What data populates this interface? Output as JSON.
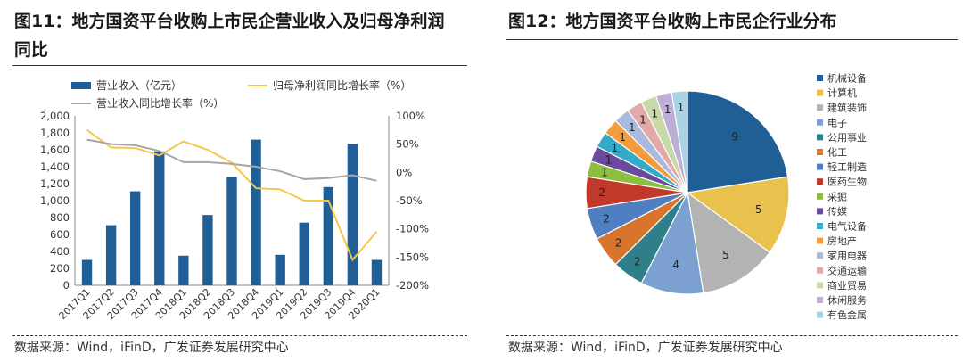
{
  "panel1": {
    "title": "图11：地方国资平台收购上市民企营业收入及归母净利润同比",
    "source": "数据来源：Wind，iFinD，广发证券发展研究中心"
  },
  "panel2": {
    "title": "图12：地方国资平台收购上市民企行业分布",
    "source": "数据来源：Wind，iFinD，广发证券发展研究中心"
  },
  "chart_data": [
    {
      "type": "bar",
      "title": "",
      "categories": [
        "2017Q1",
        "2017Q2",
        "2017Q3",
        "2017Q4",
        "2018Q1",
        "2018Q2",
        "2018Q3",
        "2018Q4",
        "2019Q1",
        "2019Q2",
        "2019Q3",
        "2019Q4",
        "2020Q1"
      ],
      "series": [
        {
          "name": "营业收入（亿元）",
          "kind": "bar",
          "axis": "left",
          "color": "#1f5f96",
          "values": [
            300,
            710,
            1110,
            1580,
            350,
            830,
            1280,
            1720,
            360,
            740,
            1160,
            1670,
            300
          ]
        },
        {
          "name": "归母净利润同比增长率（%）",
          "kind": "line",
          "axis": "right",
          "color": "#f2c94c",
          "values": [
            75,
            44,
            43,
            30,
            55,
            40,
            17,
            -28,
            -30,
            -50,
            -50,
            -155,
            -105
          ]
        },
        {
          "name": "营业收入同比增长率（%）",
          "kind": "line",
          "axis": "right",
          "color": "#a6a6a6",
          "values": [
            58,
            50,
            48,
            38,
            18,
            18,
            15,
            10,
            2,
            -12,
            -10,
            -5,
            -15
          ]
        }
      ],
      "ylim_left": [
        0,
        2000
      ],
      "yticks_left": [
        "0",
        "200",
        "400",
        "600",
        "800",
        "1,000",
        "1,200",
        "1,400",
        "1,600",
        "1,800",
        "2,000"
      ],
      "ylim_right": [
        -200,
        100
      ],
      "yticks_right": [
        "-200%",
        "-150%",
        "-100%",
        "-50%",
        "0%",
        "50%",
        "100%"
      ],
      "legend_position": "top"
    },
    {
      "type": "pie",
      "title": "",
      "labels": [
        "机械设备",
        "计算机",
        "建筑装饰",
        "电子",
        "公用事业",
        "化工",
        "轻工制造",
        "医药生物",
        "采掘",
        "传媒",
        "电气设备",
        "房地产",
        "家用电器",
        "交通运输",
        "商业贸易",
        "休闲服务",
        "有色金属"
      ],
      "values": [
        9,
        5,
        5,
        4,
        2,
        2,
        2,
        2,
        1,
        1,
        1,
        1,
        1,
        1,
        1,
        1,
        1
      ],
      "colors": [
        "#1f5f96",
        "#e8c24d",
        "#b3b3b3",
        "#7ca0cf",
        "#2e7f8a",
        "#d9742e",
        "#4f7ec1",
        "#c0392b",
        "#8cbf3f",
        "#6a4a9c",
        "#34aac8",
        "#f39c3d",
        "#aab9de",
        "#e3a8a8",
        "#c6d9a6",
        "#bcaed6",
        "#a9d3e3"
      ],
      "legend_position": "right"
    }
  ]
}
